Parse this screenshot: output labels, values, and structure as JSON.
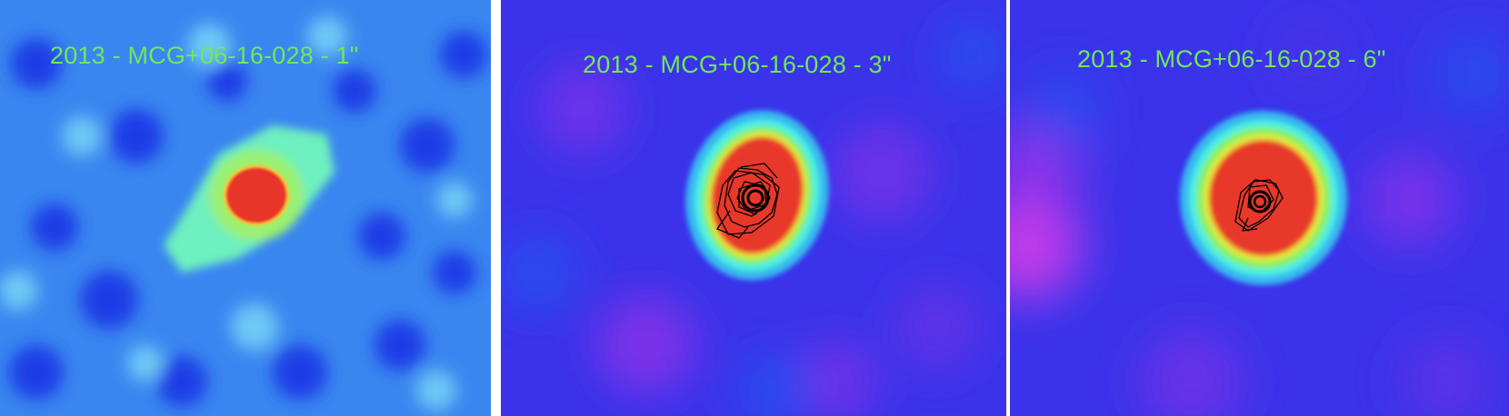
{
  "panels": [
    {
      "label": "2013 - MCG+06-16-028 - 1\"",
      "smoothing": "1\"",
      "colormap": "blue-cyan-green-red",
      "has_contours": false
    },
    {
      "label": "2013 - MCG+06-16-028 - 3\"",
      "smoothing": "3\"",
      "colormap": "blue-violet-cyan-green-yellow-red",
      "has_contours": true
    },
    {
      "label": "2013 - MCG+06-16-028 - 6\"",
      "smoothing": "6\"",
      "colormap": "blue-violet-cyan-green-yellow-red",
      "has_contours": true
    }
  ],
  "colors": {
    "label": "#6fe85a",
    "peak": "#e8372a",
    "contour": "#000000",
    "separator": "#ffffff"
  }
}
